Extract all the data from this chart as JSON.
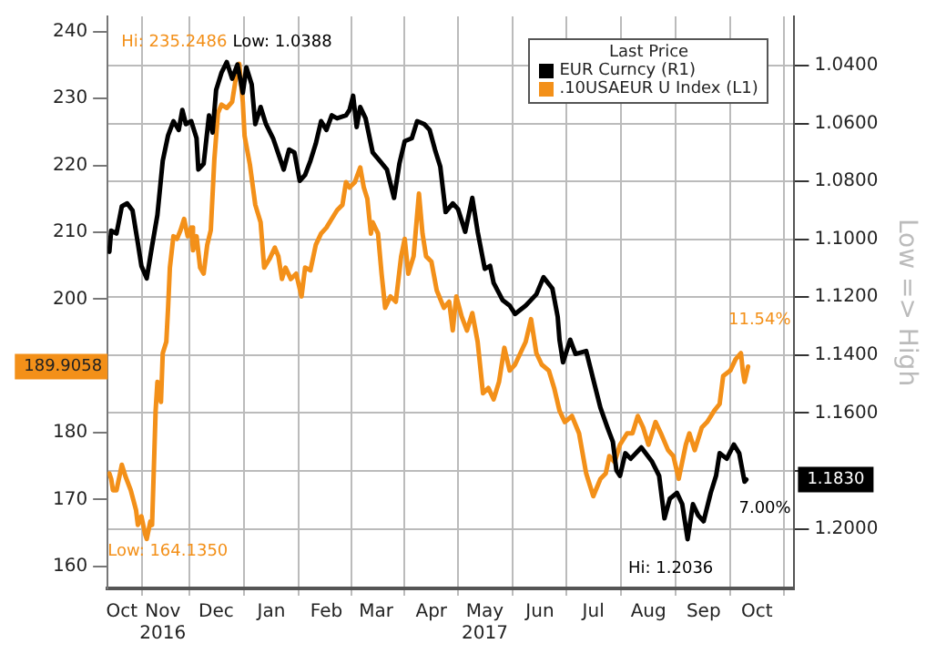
{
  "chart_data": {
    "type": "line",
    "legend_title": "Last Price",
    "y2label": "Low => High",
    "legend": "top right",
    "grid": true,
    "marker": "none",
    "line_style": "solid",
    "xlim": [
      "2016-10-15",
      "2017-11-05"
    ],
    "xticks": [
      {
        "value": "2016-10-23",
        "label": "Oct"
      },
      {
        "value": "2016-11-15",
        "label": "Nov\n2016"
      },
      {
        "value": "2016-12-15",
        "label": "Dec"
      },
      {
        "value": "2017-01-15",
        "label": "Jan"
      },
      {
        "value": "2017-02-15",
        "label": "Feb"
      },
      {
        "value": "2017-03-15",
        "label": "Mar"
      },
      {
        "value": "2017-04-15",
        "label": "Apr"
      },
      {
        "value": "2017-05-15",
        "label": "May\n2017"
      },
      {
        "value": "2017-06-15",
        "label": "Jun"
      },
      {
        "value": "2017-07-15",
        "label": "Jul"
      },
      {
        "value": "2017-08-15",
        "label": "Aug"
      },
      {
        "value": "2017-09-15",
        "label": "Sep"
      },
      {
        "value": "2017-10-15",
        "label": "Oct"
      }
    ],
    "ylim": [
      156.7,
      242.3
    ],
    "yticks": [
      160,
      170,
      180,
      200,
      210,
      220,
      230,
      240
    ],
    "y2lim": [
      1.2206,
      1.023
    ],
    "y2ticks": [
      {
        "value": 1.04,
        "label": "1.0400"
      },
      {
        "value": 1.06,
        "label": "1.0600"
      },
      {
        "value": 1.08,
        "label": "1.0800"
      },
      {
        "value": 1.1,
        "label": "1.1000"
      },
      {
        "value": 1.12,
        "label": "1.1200"
      },
      {
        "value": 1.14,
        "label": "1.1400"
      },
      {
        "value": 1.16,
        "label": "1.1600"
      },
      {
        "value": 1.18,
        "label": null
      },
      {
        "value": 1.2,
        "label": "1.2000"
      }
    ],
    "series": [
      {
        "name": "EUR Curncy  (R1)",
        "color": "#000000",
        "axis": "y2",
        "x": [
          "2016-10-16",
          "2016-10-17",
          "2016-10-20",
          "2016-10-23",
          "2016-10-26",
          "2016-10-29",
          "2016-11-01",
          "2016-11-03",
          "2016-11-06",
          "2016-11-09",
          "2016-11-12",
          "2016-11-15",
          "2016-11-18",
          "2016-11-21",
          "2016-11-24",
          "2016-11-26",
          "2016-11-28",
          "2016-12-01",
          "2016-12-04",
          "2016-12-05",
          "2016-12-08",
          "2016-12-11",
          "2016-12-13",
          "2016-12-15",
          "2016-12-18",
          "2016-12-21",
          "2016-12-24",
          "2016-12-27",
          "2016-12-30",
          "2017-01-01",
          "2017-01-04",
          "2017-01-06",
          "2017-01-09",
          "2017-01-12",
          "2017-01-16",
          "2017-01-22",
          "2017-01-25",
          "2017-01-28",
          "2017-01-31",
          "2017-02-03",
          "2017-02-06",
          "2017-02-09",
          "2017-02-12",
          "2017-02-15",
          "2017-02-18",
          "2017-02-21",
          "2017-02-26",
          "2017-02-28",
          "2017-03-02",
          "2017-03-04",
          "2017-03-06",
          "2017-03-09",
          "2017-03-13",
          "2017-03-17",
          "2017-03-21",
          "2017-03-25",
          "2017-03-28",
          "2017-03-31",
          "2017-04-04",
          "2017-04-07",
          "2017-04-11",
          "2017-04-14",
          "2017-04-17",
          "2017-04-20",
          "2017-04-23",
          "2017-04-27",
          "2017-04-30",
          "2017-05-04",
          "2017-05-08",
          "2017-05-11",
          "2017-05-15",
          "2017-05-18",
          "2017-05-20",
          "2017-05-25",
          "2017-05-29",
          "2017-06-01",
          "2017-06-07",
          "2017-06-13",
          "2017-06-17",
          "2017-06-22",
          "2017-06-25",
          "2017-06-26",
          "2017-06-28",
          "2017-07-02",
          "2017-07-05",
          "2017-07-11",
          "2017-07-15",
          "2017-07-19",
          "2017-07-23",
          "2017-07-26",
          "2017-07-28",
          "2017-07-30",
          "2017-08-02",
          "2017-08-05",
          "2017-08-11",
          "2017-08-17",
          "2017-08-21",
          "2017-08-24",
          "2017-08-27",
          "2017-08-31",
          "2017-09-03",
          "2017-09-06",
          "2017-09-09",
          "2017-09-12",
          "2017-09-15",
          "2017-09-19",
          "2017-09-22",
          "2017-09-24",
          "2017-09-28",
          "2017-10-02",
          "2017-10-05",
          "2017-10-08",
          "2017-10-09"
        ],
        "values": [
          1.1043,
          1.097,
          1.098,
          1.0886,
          1.0876,
          1.09,
          1.1013,
          1.1092,
          1.1135,
          1.1023,
          1.0916,
          1.0729,
          1.0641,
          1.0592,
          1.0622,
          1.0553,
          1.0602,
          1.0592,
          1.0651,
          1.0759,
          1.0739,
          1.0572,
          1.0631,
          1.0484,
          1.0425,
          1.0388,
          1.0445,
          1.0396,
          1.0494,
          1.0406,
          1.0465,
          1.0602,
          1.0543,
          1.0602,
          1.0651,
          1.0759,
          1.069,
          1.07,
          1.0798,
          1.0778,
          1.0729,
          1.067,
          1.0592,
          1.0622,
          1.0572,
          1.0582,
          1.0572,
          1.0553,
          1.0504,
          1.0612,
          1.0543,
          1.0582,
          1.07,
          1.0729,
          1.0759,
          1.0857,
          1.0739,
          1.0661,
          1.0651,
          1.0592,
          1.0602,
          1.0622,
          1.069,
          1.0749,
          1.0906,
          1.0876,
          1.0896,
          1.0974,
          1.0857,
          1.0974,
          1.1102,
          1.1092,
          1.1151,
          1.121,
          1.1229,
          1.1258,
          1.1229,
          1.119,
          1.1131,
          1.117,
          1.1268,
          1.1347,
          1.1425,
          1.1347,
          1.1396,
          1.1386,
          1.1484,
          1.1582,
          1.1651,
          1.17,
          1.1798,
          1.1817,
          1.1739,
          1.1758,
          1.1719,
          1.1768,
          1.1817,
          1.1964,
          1.1896,
          1.1876,
          1.1915,
          1.2036,
          1.1915,
          1.1954,
          1.1974,
          1.1876,
          1.1817,
          1.1739,
          1.1758,
          1.1709,
          1.1739,
          1.1837,
          1.183
        ]
      },
      {
        "name": ".10USAEUR U Index  (L1)",
        "color": "#f39019",
        "axis": "y",
        "x": [
          "2016-10-16",
          "2016-10-17",
          "2016-10-18",
          "2016-10-20",
          "2016-10-22",
          "2016-10-23",
          "2016-10-25",
          "2016-10-28",
          "2016-10-31",
          "2016-11-01",
          "2016-11-03",
          "2016-11-05",
          "2016-11-06",
          "2016-11-08",
          "2016-11-09",
          "2016-11-11",
          "2016-11-12",
          "2016-11-14",
          "2016-11-15",
          "2016-11-17",
          "2016-11-18",
          "2016-11-19",
          "2016-11-21",
          "2016-11-23",
          "2016-11-25",
          "2016-11-27",
          "2016-11-29",
          "2016-12-01",
          "2016-12-02",
          "2016-12-04",
          "2016-12-06",
          "2016-12-08",
          "2016-12-10",
          "2016-12-12",
          "2016-12-14",
          "2016-12-16",
          "2016-12-18",
          "2016-12-21",
          "2016-12-24",
          "2016-12-26",
          "2016-12-28",
          "2016-12-30",
          "2016-12-31",
          "2017-01-03",
          "2017-01-06",
          "2017-01-09",
          "2017-01-11",
          "2017-01-14",
          "2017-01-17",
          "2017-01-19",
          "2017-01-21",
          "2017-01-23",
          "2017-01-26",
          "2017-01-29",
          "2017-02-01",
          "2017-02-03",
          "2017-02-06",
          "2017-02-09",
          "2017-02-12",
          "2017-02-15",
          "2017-02-18",
          "2017-02-21",
          "2017-02-24",
          "2017-02-26",
          "2017-02-28",
          "2017-03-03",
          "2017-03-06",
          "2017-03-08",
          "2017-03-10",
          "2017-03-12",
          "2017-03-13",
          "2017-03-16",
          "2017-03-18",
          "2017-03-20",
          "2017-03-23",
          "2017-03-26",
          "2017-03-29",
          "2017-03-31",
          "2017-04-02",
          "2017-04-05",
          "2017-04-08",
          "2017-04-10",
          "2017-04-12",
          "2017-04-15",
          "2017-04-18",
          "2017-04-22",
          "2017-04-25",
          "2017-04-27",
          "2017-04-29",
          "2017-05-02",
          "2017-05-05",
          "2017-05-08",
          "2017-05-11",
          "2017-05-14",
          "2017-05-17",
          "2017-05-20",
          "2017-05-23",
          "2017-05-26",
          "2017-05-29",
          "2017-06-01",
          "2017-06-04",
          "2017-06-07",
          "2017-06-10",
          "2017-06-13",
          "2017-06-16",
          "2017-06-20",
          "2017-06-23",
          "2017-06-26",
          "2017-06-29",
          "2017-07-03",
          "2017-07-07",
          "2017-07-11",
          "2017-07-15",
          "2017-07-19",
          "2017-07-22",
          "2017-07-24",
          "2017-07-27",
          "2017-07-30",
          "2017-08-03",
          "2017-08-06",
          "2017-08-09",
          "2017-08-12",
          "2017-08-15",
          "2017-08-19",
          "2017-08-22",
          "2017-08-26",
          "2017-08-29",
          "2017-09-01",
          "2017-09-05",
          "2017-09-07",
          "2017-09-10",
          "2017-09-14",
          "2017-09-17",
          "2017-09-21",
          "2017-09-24",
          "2017-09-26",
          "2017-09-30",
          "2017-10-03",
          "2017-10-06",
          "2017-10-07",
          "2017-10-08",
          "2017-10-10"
        ],
        "values": [
          173.9,
          173.1,
          171.4,
          171.4,
          173.9,
          175.2,
          173.5,
          171.4,
          168.4,
          166.2,
          167.5,
          164.9,
          164.1,
          166.7,
          166.2,
          183.3,
          187.6,
          184.6,
          191.9,
          193.6,
          198.7,
          204.7,
          209.4,
          209.0,
          210.3,
          212.0,
          209.4,
          210.7,
          207.3,
          209.4,
          204.7,
          203.8,
          208.1,
          210.3,
          220.9,
          227.8,
          229.1,
          228.6,
          229.5,
          232.9,
          235.2,
          229.5,
          224.4,
          220.1,
          214.1,
          211.5,
          204.7,
          206.0,
          207.7,
          206.4,
          203.0,
          204.7,
          203.0,
          203.8,
          200.4,
          204.7,
          204.3,
          208.1,
          209.8,
          210.7,
          212.0,
          213.3,
          214.1,
          217.5,
          216.7,
          217.5,
          219.7,
          216.7,
          215.0,
          209.8,
          211.5,
          209.8,
          203.8,
          198.7,
          200.4,
          199.6,
          206.4,
          209.0,
          203.8,
          206.4,
          215.8,
          209.8,
          206.4,
          205.6,
          201.3,
          198.7,
          199.6,
          195.3,
          200.4,
          197.4,
          195.3,
          197.9,
          193.6,
          185.9,
          186.7,
          185.0,
          187.6,
          192.7,
          189.3,
          190.2,
          191.9,
          193.6,
          197.0,
          191.9,
          190.2,
          189.3,
          186.7,
          183.3,
          181.6,
          182.5,
          179.9,
          173.9,
          170.5,
          173.1,
          173.9,
          176.5,
          175.6,
          178.2,
          179.9,
          179.9,
          182.5,
          180.8,
          178.2,
          181.6,
          179.9,
          177.4,
          176.5,
          173.1,
          178.2,
          179.9,
          177.4,
          180.8,
          181.6,
          183.3,
          184.3,
          188.5,
          189.3,
          191.0,
          191.9,
          189.3,
          187.6,
          189.9
        ]
      }
    ],
    "annotations": [
      "Hi: 235.2486",
      "Low: 1.0388",
      "Low: 164.1350",
      "Hi: 1.2036",
      "11.54%",
      "7.00%",
      "189.9058",
      "1.1830"
    ]
  }
}
